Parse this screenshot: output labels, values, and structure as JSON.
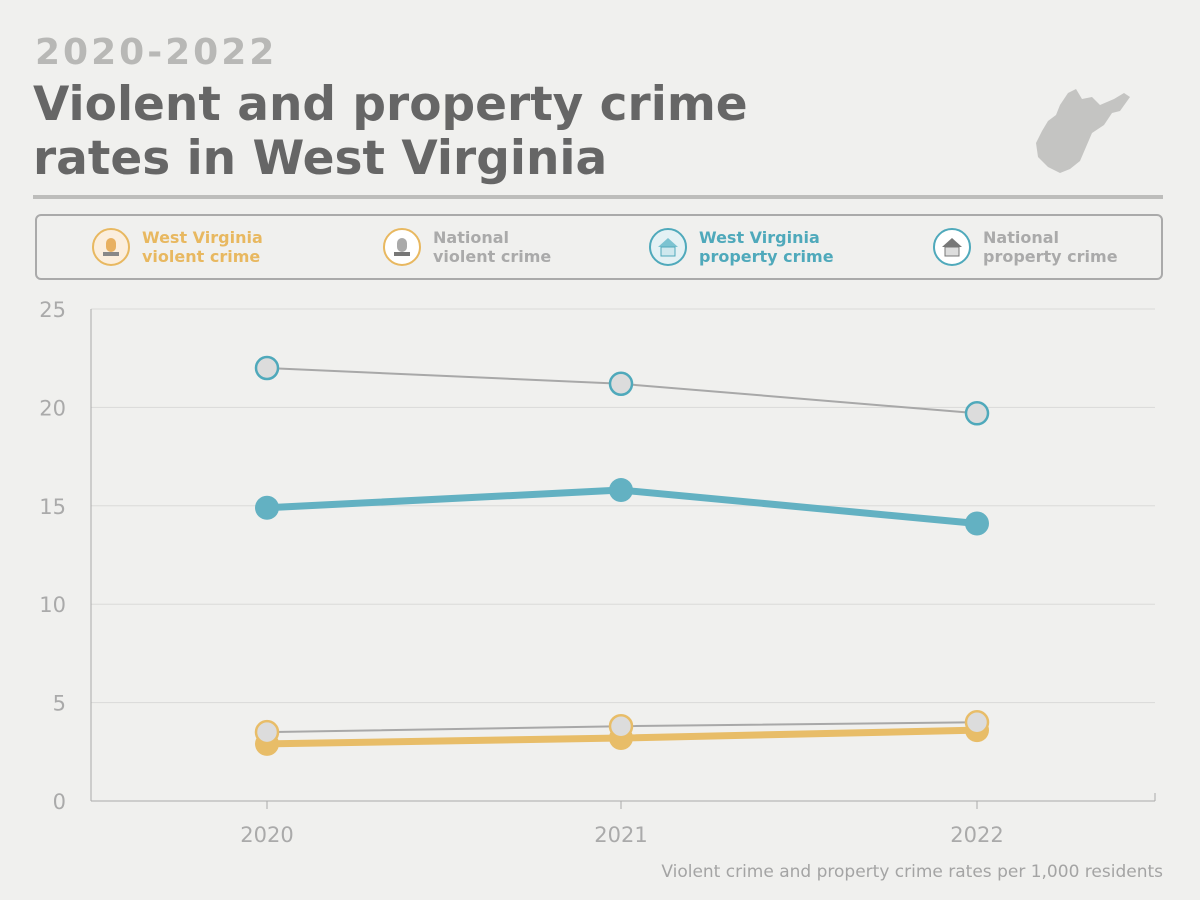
{
  "subtitle": "2020-2022",
  "title_line1": "Violent and property crime",
  "title_line2": "rates in West Virginia",
  "legend": [
    {
      "label1": "West Virginia",
      "label2": "violent crime",
      "color": "#e8b860",
      "icon": "siren-icon"
    },
    {
      "label1": "National",
      "label2": "violent crime",
      "color": "#a8a8a8",
      "icon": "siren-icon"
    },
    {
      "label1": "West Virginia",
      "label2": "property crime",
      "color": "#4fa9bb",
      "icon": "house-icon"
    },
    {
      "label1": "National",
      "label2": "property crime",
      "color": "#a8a8a8",
      "icon": "house-icon"
    }
  ],
  "note": "Violent crime and property crime rates per 1,000 residents",
  "chart_data": {
    "type": "line",
    "categories": [
      "2020",
      "2021",
      "2022"
    ],
    "ylim": [
      0,
      25
    ],
    "yticks": [
      "0",
      "5",
      "10",
      "15",
      "20",
      "25"
    ],
    "grid": true,
    "legend_placement": "top",
    "series": [
      {
        "name": "National property crime",
        "values": [
          22.0,
          21.2,
          19.7
        ],
        "color": "#a8a8a8",
        "marker": "#4fa9bb"
      },
      {
        "name": "West Virginia property crime",
        "values": [
          14.9,
          15.8,
          14.1
        ],
        "color": "#63b1c2"
      },
      {
        "name": "West Virginia violent crime",
        "values": [
          2.9,
          3.2,
          3.6
        ],
        "color": "#e8bd68"
      },
      {
        "name": "National violent crime",
        "values": [
          3.5,
          3.8,
          4.0
        ],
        "color": "#a8a8a8",
        "marker": "#e8bd68"
      }
    ]
  }
}
